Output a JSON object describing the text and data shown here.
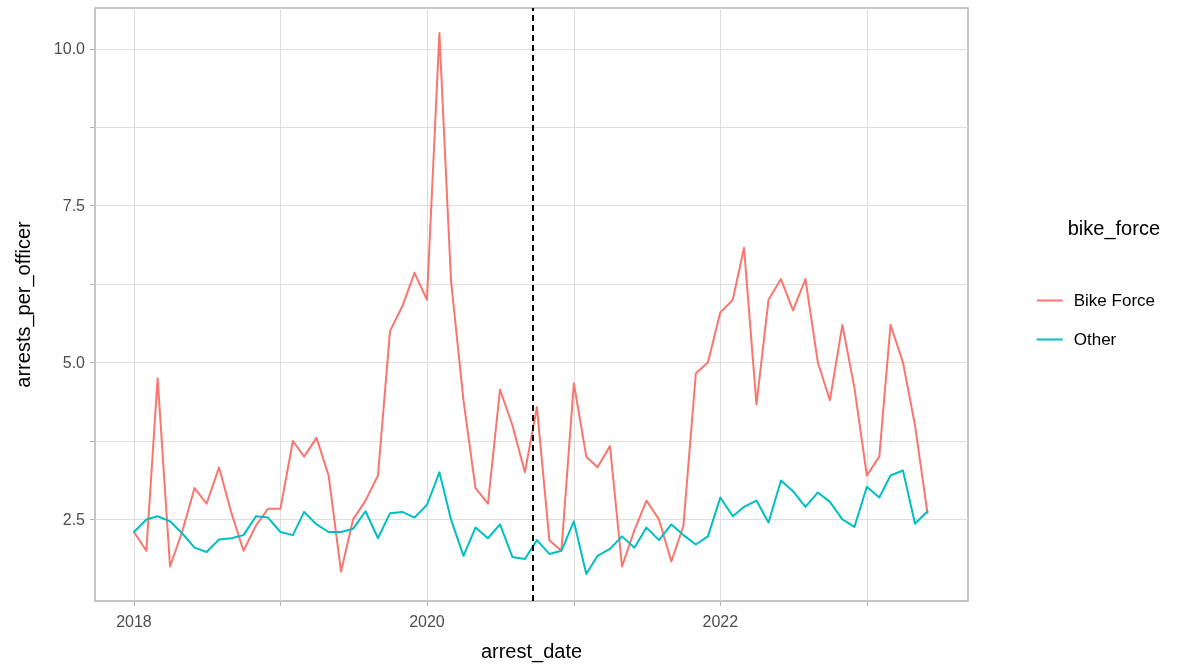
{
  "chart_data": {
    "type": "line",
    "xlabel": "arrest_date",
    "ylabel": "arrests_per_officer",
    "legend_title": "bike_force",
    "legend": "right",
    "grid": true,
    "line_style": "solid",
    "marker": "none",
    "x": [
      "2018-01",
      "2018-02",
      "2018-03",
      "2018-04",
      "2018-05",
      "2018-06",
      "2018-07",
      "2018-08",
      "2018-09",
      "2018-10",
      "2018-11",
      "2018-12",
      "2019-01",
      "2019-02",
      "2019-03",
      "2019-04",
      "2019-05",
      "2019-06",
      "2019-07",
      "2019-08",
      "2019-09",
      "2019-10",
      "2019-11",
      "2019-12",
      "2020-01",
      "2020-02",
      "2020-03",
      "2020-04",
      "2020-05",
      "2020-06",
      "2020-07",
      "2020-08",
      "2020-09",
      "2020-10",
      "2020-11",
      "2020-12",
      "2021-01",
      "2021-02",
      "2021-03",
      "2021-04",
      "2021-05",
      "2021-06",
      "2021-07",
      "2021-08",
      "2021-09",
      "2021-10",
      "2021-11",
      "2021-12",
      "2022-01",
      "2022-02",
      "2022-03",
      "2022-04",
      "2022-05",
      "2022-06",
      "2022-07",
      "2022-08",
      "2022-09",
      "2022-10",
      "2022-11",
      "2022-12",
      "2023-01",
      "2023-02",
      "2023-03",
      "2023-04",
      "2023-05",
      "2023-06"
    ],
    "series": [
      {
        "name": "Bike Force",
        "color": "#f8766d",
        "values": [
          2.3,
          2.0,
          4.75,
          1.75,
          2.3,
          3.0,
          2.75,
          3.33,
          2.6,
          2.0,
          2.4,
          2.67,
          2.67,
          3.75,
          3.5,
          3.8,
          3.2,
          1.67,
          2.5,
          2.8,
          3.2,
          5.5,
          5.9,
          6.43,
          6.0,
          10.25,
          6.3,
          4.4,
          3.0,
          2.75,
          4.57,
          4.0,
          3.25,
          4.29,
          2.17,
          2.0,
          4.67,
          3.5,
          3.33,
          3.67,
          1.75,
          2.33,
          2.8,
          2.5,
          1.83,
          2.4,
          4.83,
          5.0,
          5.8,
          6.0,
          6.83,
          4.33,
          6.0,
          6.33,
          5.83,
          6.33,
          5.0,
          4.4,
          5.6,
          4.6,
          3.2,
          3.5,
          5.6,
          5.0,
          4.0,
          2.6
        ]
      },
      {
        "name": "Other",
        "color": "#00bfc4",
        "values": [
          2.3,
          2.5,
          2.55,
          2.47,
          2.28,
          2.05,
          1.98,
          2.18,
          2.2,
          2.25,
          2.55,
          2.53,
          2.3,
          2.25,
          2.62,
          2.42,
          2.3,
          2.3,
          2.35,
          2.63,
          2.2,
          2.6,
          2.62,
          2.53,
          2.73,
          3.25,
          2.5,
          1.92,
          2.37,
          2.2,
          2.42,
          1.9,
          1.87,
          2.17,
          1.95,
          2.0,
          2.47,
          1.63,
          1.92,
          2.03,
          2.23,
          2.05,
          2.37,
          2.17,
          2.42,
          2.25,
          2.1,
          2.23,
          2.85,
          2.55,
          2.7,
          2.8,
          2.45,
          3.12,
          2.95,
          2.7,
          2.93,
          2.78,
          2.5,
          2.38,
          3.02,
          2.85,
          3.2,
          3.28,
          2.43,
          2.63
        ]
      }
    ],
    "xlim": [
      "2017-09-26",
      "2023-09-10"
    ],
    "xticks": [
      {
        "value": "2018",
        "label": "2018"
      },
      {
        "value": "2019",
        "label": null
      },
      {
        "value": "2020",
        "label": "2020"
      },
      {
        "value": "2021",
        "label": null
      },
      {
        "value": "2022",
        "label": "2022"
      },
      {
        "value": "2023",
        "label": null
      }
    ],
    "ylim": [
      1.2,
      10.65
    ],
    "yticks": [
      {
        "value": 2.5,
        "label": "2.5"
      },
      {
        "value": 3.75,
        "label": null
      },
      {
        "value": 5,
        "label": "5.0"
      },
      {
        "value": 6.25,
        "label": null
      },
      {
        "value": 7.5,
        "label": "7.5"
      },
      {
        "value": 8.75,
        "label": null
      },
      {
        "value": 10,
        "label": "10.0"
      }
    ],
    "ref_lines": [
      {
        "axis": "x",
        "value": "2020-09-21",
        "label": null,
        "color": "#000000",
        "line_style": "dashed"
      }
    ]
  }
}
